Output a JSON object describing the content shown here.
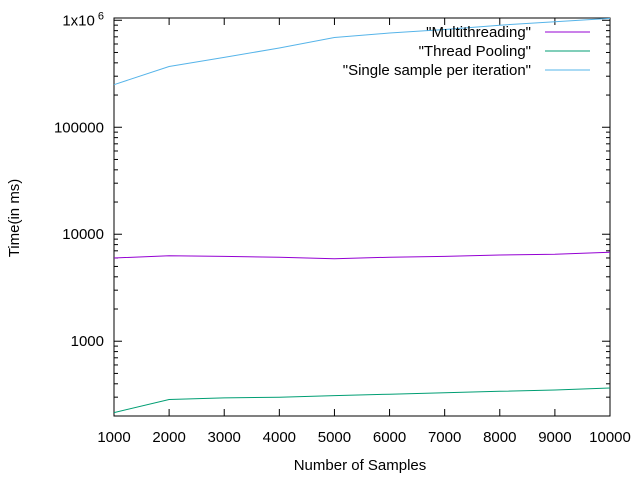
{
  "chart_data": {
    "type": "line",
    "xlabel": "Number of Samples",
    "ylabel": "Time(in ms)",
    "x": [
      1000,
      2000,
      3000,
      4000,
      5000,
      6000,
      7000,
      8000,
      9000,
      10000
    ],
    "xlim": [
      1000,
      10000
    ],
    "ylim": [
      200,
      1050000
    ],
    "y_scale": "log",
    "grid": false,
    "legend_position": "top-right",
    "x_ticks": [
      {
        "value": 1000,
        "label": "1000"
      },
      {
        "value": 2000,
        "label": "2000"
      },
      {
        "value": 3000,
        "label": "3000"
      },
      {
        "value": 4000,
        "label": "4000"
      },
      {
        "value": 5000,
        "label": "5000"
      },
      {
        "value": 6000,
        "label": "6000"
      },
      {
        "value": 7000,
        "label": "7000"
      },
      {
        "value": 8000,
        "label": "8000"
      },
      {
        "value": 9000,
        "label": "9000"
      },
      {
        "value": 10000,
        "label": "10000"
      }
    ],
    "y_ticks": [
      {
        "value": 1000,
        "label": "1000"
      },
      {
        "value": 10000,
        "label": "10000"
      },
      {
        "value": 100000,
        "label": "100000"
      },
      {
        "value": 1000000,
        "label": "1x10",
        "sup": "6"
      }
    ],
    "series": [
      {
        "name": "\"Multithreading\"",
        "color": "#9400d3",
        "values": [
          6000,
          6300,
          6200,
          6100,
          5900,
          6100,
          6200,
          6400,
          6500,
          6800
        ]
      },
      {
        "name": "\"Thread Pooling\"",
        "color": "#009e73",
        "values": [
          215,
          285,
          295,
          300,
          310,
          320,
          330,
          340,
          350,
          365
        ]
      },
      {
        "name": "\"Single sample per iteration\"",
        "color": "#56b4e9",
        "values": [
          250000,
          370000,
          450000,
          550000,
          690000,
          760000,
          820000,
          900000,
          970000,
          1040000
        ]
      }
    ]
  }
}
